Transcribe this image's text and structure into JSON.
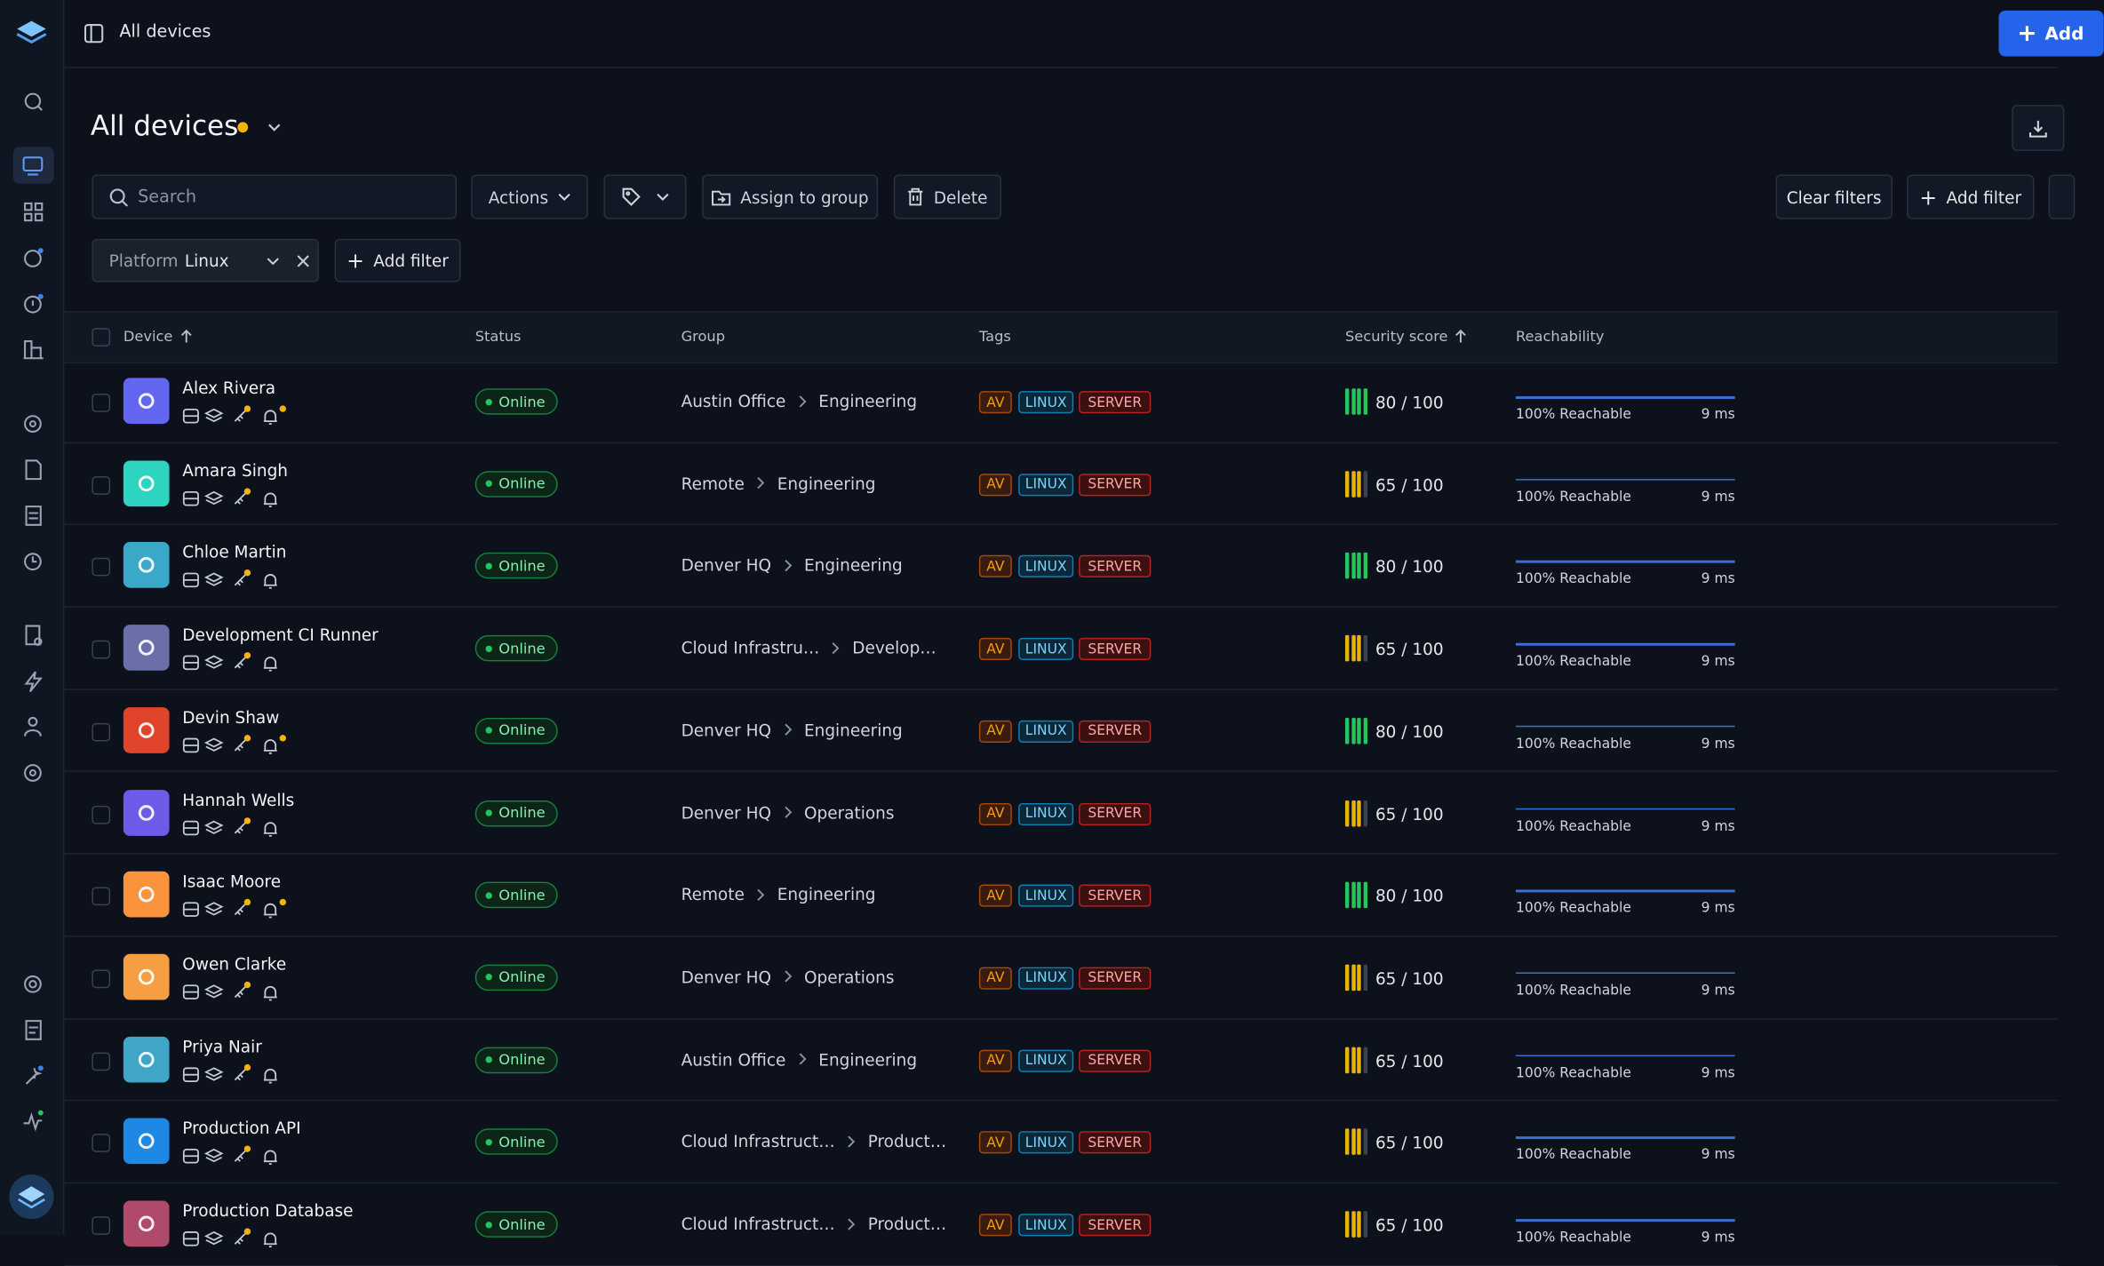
{
  "header": {
    "title": "All devices",
    "primary_button": "Add"
  },
  "page": {
    "title": "All devices"
  },
  "toolbar": {
    "search_placeholder": "Search",
    "actions": "Actions",
    "assign": "Assign to group",
    "delete": "Delete",
    "clear_filters": "Clear filters",
    "add_filter": "Add filter"
  },
  "filters": {
    "chip_key": "Platform",
    "chip_value": "Linux",
    "add_filter": "Add filter"
  },
  "table": {
    "columns": [
      "Device",
      "Status",
      "Group",
      "Tags",
      "Security score",
      "Reachability"
    ],
    "rows": [
      {
        "name": "Alex Rivera",
        "avatar_color": "#6366f1",
        "status": "Online",
        "group": [
          "Austin Office",
          "Engineering"
        ],
        "tags": [
          "AV",
          "LINUX",
          "SERVER"
        ],
        "score": "80 / 100",
        "reach": "100% Reachable",
        "latency": "9 ms",
        "bell_alert": true
      },
      {
        "name": "Amara Singh",
        "avatar_color": "#2dd4bf",
        "status": "Online",
        "group": [
          "Remote",
          "Engineering"
        ],
        "tags": [
          "AV",
          "LINUX",
          "SERVER"
        ],
        "score": "65 / 100",
        "reach": "100% Reachable",
        "latency": "9 ms",
        "bell_alert": false
      },
      {
        "name": "Chloe Martin",
        "avatar_color": "#3aa8c9",
        "status": "Online",
        "group": [
          "Denver HQ",
          "Engineering"
        ],
        "tags": [
          "AV",
          "LINUX",
          "SERVER"
        ],
        "score": "80 / 100",
        "reach": "100% Reachable",
        "latency": "9 ms",
        "bell_alert": false
      },
      {
        "name": "Development CI Runner",
        "avatar_color": "#6b6fa8",
        "status": "Online",
        "group": [
          "Cloud Infrastru…",
          "Develop…"
        ],
        "tags": [
          "AV",
          "LINUX",
          "SERVER"
        ],
        "score": "65 / 100",
        "reach": "100% Reachable",
        "latency": "9 ms",
        "bell_alert": false
      },
      {
        "name": "Devin Shaw",
        "avatar_color": "#e0452b",
        "status": "Online",
        "group": [
          "Denver HQ",
          "Engineering"
        ],
        "tags": [
          "AV",
          "LINUX",
          "SERVER"
        ],
        "score": "80 / 100",
        "reach": "100% Reachable",
        "latency": "9 ms",
        "bell_alert": true
      },
      {
        "name": "Hannah Wells",
        "avatar_color": "#6d5ce8",
        "status": "Online",
        "group": [
          "Denver HQ",
          "Operations"
        ],
        "tags": [
          "AV",
          "LINUX",
          "SERVER"
        ],
        "score": "65 / 100",
        "reach": "100% Reachable",
        "latency": "9 ms",
        "bell_alert": false
      },
      {
        "name": "Isaac Moore",
        "avatar_color": "#fb923c",
        "status": "Online",
        "group": [
          "Remote",
          "Engineering"
        ],
        "tags": [
          "AV",
          "LINUX",
          "SERVER"
        ],
        "score": "80 / 100",
        "reach": "100% Reachable",
        "latency": "9 ms",
        "bell_alert": true
      },
      {
        "name": "Owen Clarke",
        "avatar_color": "#f59e42",
        "status": "Online",
        "group": [
          "Denver HQ",
          "Operations"
        ],
        "tags": [
          "AV",
          "LINUX",
          "SERVER"
        ],
        "score": "65 / 100",
        "reach": "100% Reachable",
        "latency": "9 ms",
        "bell_alert": false
      },
      {
        "name": "Priya Nair",
        "avatar_color": "#3fa6c8",
        "status": "Online",
        "group": [
          "Austin Office",
          "Engineering"
        ],
        "tags": [
          "AV",
          "LINUX",
          "SERVER"
        ],
        "score": "65 / 100",
        "reach": "100% Reachable",
        "latency": "9 ms",
        "bell_alert": false
      },
      {
        "name": "Production API",
        "avatar_color": "#1e88e5",
        "status": "Online",
        "group": [
          "Cloud Infrastruct…",
          "Product…"
        ],
        "tags": [
          "AV",
          "LINUX",
          "SERVER"
        ],
        "score": "65 / 100",
        "reach": "100% Reachable",
        "latency": "9 ms",
        "bell_alert": false
      },
      {
        "name": "Production Database",
        "avatar_color": "#b04a6a",
        "status": "Online",
        "group": [
          "Cloud Infrastruct…",
          "Product…"
        ],
        "tags": [
          "AV",
          "LINUX",
          "SERVER"
        ],
        "score": "65 / 100",
        "reach": "100% Reachable",
        "latency": "9 ms",
        "bell_alert": false
      }
    ]
  }
}
